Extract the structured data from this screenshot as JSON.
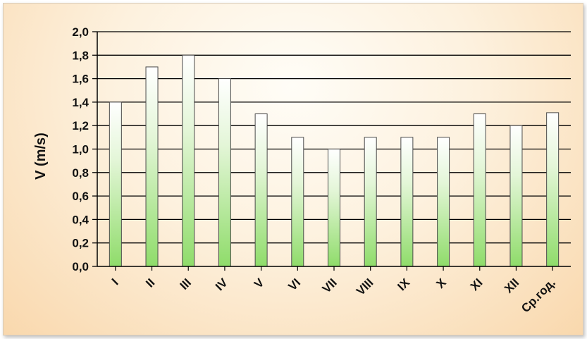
{
  "chart_data": {
    "type": "bar",
    "title": "",
    "xlabel": "",
    "ylabel": "V (m/s)",
    "categories": [
      "I",
      "II",
      "III",
      "IV",
      "V",
      "VI",
      "VII",
      "VIII",
      "IX",
      "X",
      "XI",
      "XII",
      "Ср.год."
    ],
    "values": [
      1.4,
      1.7,
      1.8,
      1.6,
      1.3,
      1.1,
      1.0,
      1.1,
      1.1,
      1.1,
      1.3,
      1.2,
      1.31
    ],
    "ylim": [
      0,
      2.0
    ],
    "yticks": [
      "0,0",
      "0,2",
      "0,4",
      "0,6",
      "0,8",
      "1,0",
      "1,2",
      "1,4",
      "1,6",
      "1,8",
      "2,0"
    ],
    "grid": true,
    "legend": "none",
    "colors": {
      "bar_top": "#ffffff",
      "bar_bottom": "#8fdc6a",
      "bar_outline": "#4a4a4a",
      "gridline": "#000000",
      "background_center": "#fffdf7",
      "background_edge": "#f9d8ad"
    }
  }
}
